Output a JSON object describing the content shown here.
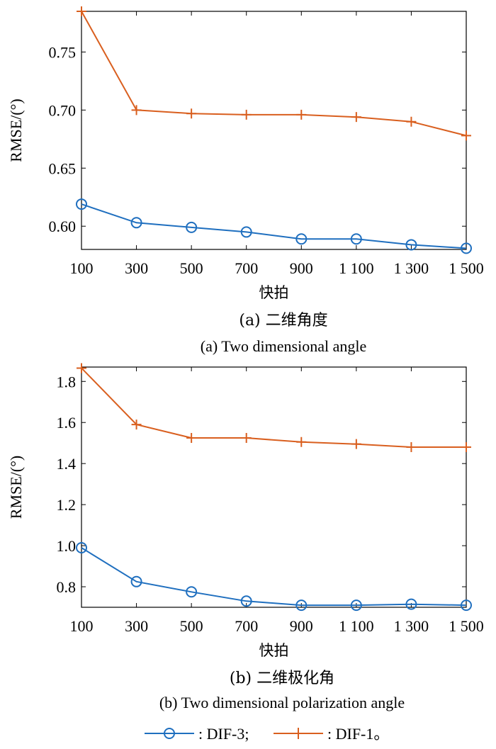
{
  "chart_data": [
    {
      "type": "line",
      "categories": [
        "100",
        "300",
        "500",
        "700",
        "900",
        "1 100",
        "1 300",
        "1 500"
      ],
      "ylabel": "RMSE/(°)",
      "xlabel": "快拍",
      "ylim": [
        0.58,
        0.785
      ],
      "yticks": [
        "0.60",
        "0.65",
        "0.70",
        "0.75"
      ],
      "caption_cn": "(a) 二维角度",
      "caption_en": "(a) Two dimensional angle",
      "series": [
        {
          "name": "DIF-3",
          "values": [
            0.619,
            0.603,
            0.599,
            0.595,
            0.589,
            0.589,
            0.584,
            0.581
          ]
        },
        {
          "name": "DIF-1",
          "values": [
            0.785,
            0.7,
            0.697,
            0.696,
            0.696,
            0.694,
            0.69,
            0.678
          ]
        }
      ]
    },
    {
      "type": "line",
      "categories": [
        "100",
        "300",
        "500",
        "700",
        "900",
        "1 100",
        "1 300",
        "1 500"
      ],
      "ylabel": "RMSE/(°)",
      "xlabel": "快拍",
      "ylim": [
        0.7,
        1.87
      ],
      "yticks": [
        "0.8",
        "1.0",
        "1.2",
        "1.4",
        "1.6",
        "1.8"
      ],
      "caption_cn": "(b) 二维极化角",
      "caption_en": "(b) Two dimensional polarization angle",
      "series": [
        {
          "name": "DIF-3",
          "values": [
            0.99,
            0.825,
            0.775,
            0.73,
            0.71,
            0.71,
            0.715,
            0.71
          ]
        },
        {
          "name": "DIF-1",
          "values": [
            1.865,
            1.59,
            1.525,
            1.525,
            1.505,
            1.495,
            1.48,
            1.48
          ]
        }
      ]
    }
  ],
  "legend": {
    "dif3_label": ": DIF-3;",
    "dif1_label": ": DIF-1。"
  },
  "colors": {
    "dif3": "#1f6fbf",
    "dif1": "#d95f1f"
  }
}
